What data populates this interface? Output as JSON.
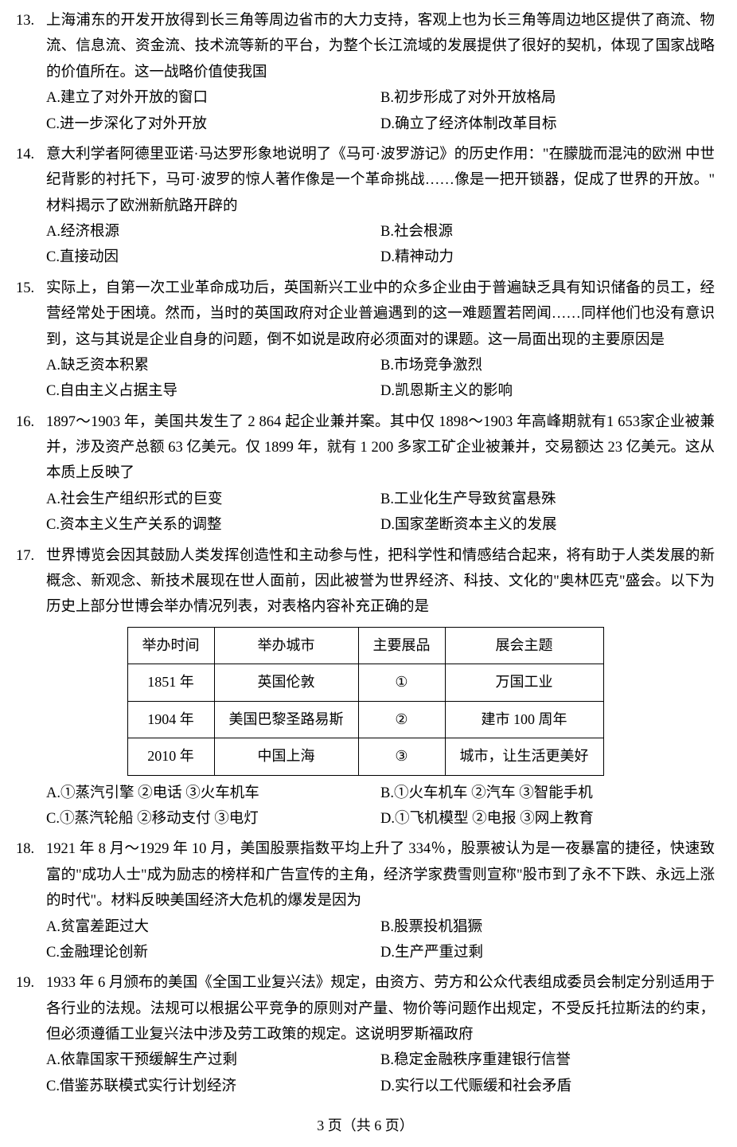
{
  "questions": [
    {
      "num": "13.",
      "stem": "上海浦东的开发开放得到长三角等周边省市的大力支持，客观上也为长三角等周边地区提供了商流、物流、信息流、资金流、技术流等新的平台，为整个长江流域的发展提供了很好的契机，体现了国家战略的价值所在。这一战略价值使我国",
      "opts": [
        {
          "l": "A.",
          "t": "建立了对外开放的窗口",
          "w": "half"
        },
        {
          "l": "B.",
          "t": "初步形成了对外开放格局",
          "w": "half"
        },
        {
          "l": "C.",
          "t": "进一步深化了对外开放",
          "w": "half"
        },
        {
          "l": "D.",
          "t": "确立了经济体制改革目标",
          "w": "half"
        }
      ]
    },
    {
      "num": "14.",
      "stem": "意大利学者阿德里亚诺·马达罗形象地说明了《马可·波罗游记》的历史作用：\"在朦胧而混沌的欧洲 中世纪背影的衬托下，马可·波罗的惊人著作像是一个革命挑战……像是一把开锁器，促成了世界的开放。\" 材料揭示了欧洲新航路开辟的",
      "opts": [
        {
          "l": "A.",
          "t": "经济根源",
          "w": "half"
        },
        {
          "l": "B.",
          "t": "社会根源",
          "w": "half"
        },
        {
          "l": "C.",
          "t": "直接动因",
          "w": "half"
        },
        {
          "l": "D.",
          "t": "精神动力",
          "w": "half"
        }
      ]
    },
    {
      "num": "15.",
      "stem": "实际上，自第一次工业革命成功后，英国新兴工业中的众多企业由于普遍缺乏具有知识储备的员工，经营经常处于困境。然而，当时的英国政府对企业普遍遇到的这一难题置若罔闻……同样他们也没有意识到，这与其说是企业自身的问题，倒不如说是政府必须面对的课题。这一局面出现的主要原因是",
      "opts": [
        {
          "l": "A.",
          "t": "缺乏资本积累",
          "w": "half"
        },
        {
          "l": "B.",
          "t": "市场竞争激烈",
          "w": "half"
        },
        {
          "l": "C.",
          "t": "自由主义占据主导",
          "w": "half"
        },
        {
          "l": "D.",
          "t": "凯恩斯主义的影响",
          "w": "half"
        }
      ]
    },
    {
      "num": "16.",
      "stem": "1897～1903 年，美国共发生了 2 864 起企业兼并案。其中仅 1898～1903 年高峰期就有1 653家企业被兼并，涉及资产总额 63 亿美元。仅 1899 年，就有 1 200 多家工矿企业被兼并，交易额达 23 亿美元。这从本质上反映了",
      "opts": [
        {
          "l": "A.",
          "t": "社会生产组织形式的巨变",
          "w": "half"
        },
        {
          "l": "B.",
          "t": "工业化生产导致贫富悬殊",
          "w": "half"
        },
        {
          "l": "C.",
          "t": "资本主义生产关系的调整",
          "w": "half"
        },
        {
          "l": "D.",
          "t": "国家垄断资本主义的发展",
          "w": "half"
        }
      ]
    },
    {
      "num": "17.",
      "stem": "世界博览会因其鼓励人类发挥创造性和主动参与性，把科学性和情感结合起来，将有助于人类发展的新概念、新观念、新技术展现在世人面前，因此被誉为世界经济、科技、文化的\"奥林匹克\"盛会。以下为历史上部分世博会举办情况列表，对表格内容补充正确的是",
      "table": {
        "headers": [
          "举办时间",
          "举办城市",
          "主要展品",
          "展会主题"
        ],
        "rows": [
          [
            "1851 年",
            "英国伦敦",
            "①",
            "万国工业"
          ],
          [
            "1904 年",
            "美国巴黎圣路易斯",
            "②",
            "建市 100 周年"
          ],
          [
            "2010 年",
            "中国上海",
            "③",
            "城市，让生活更美好"
          ]
        ]
      },
      "opts": [
        {
          "l": "A.",
          "t": "①蒸汽引擎 ②电话 ③火车机车",
          "w": "half"
        },
        {
          "l": "B.",
          "t": "①火车机车 ②汽车 ③智能手机",
          "w": "half"
        },
        {
          "l": "C.",
          "t": "①蒸汽轮船 ②移动支付 ③电灯",
          "w": "half"
        },
        {
          "l": "D.",
          "t": "①飞机模型 ②电报 ③网上教育",
          "w": "half"
        }
      ]
    },
    {
      "num": "18.",
      "stem": "1921 年 8 月～1929 年 10 月，美国股票指数平均上升了 334％，股票被认为是一夜暴富的捷径，快速致富的\"成功人士\"成为励志的榜样和广告宣传的主角，经济学家费雪则宣称\"股市到了永不下跌、永远上涨的时代\"。材料反映美国经济大危机的爆发是因为",
      "opts": [
        {
          "l": "A.",
          "t": "贫富差距过大",
          "w": "half"
        },
        {
          "l": "B.",
          "t": "股票投机猖獗",
          "w": "half"
        },
        {
          "l": "C.",
          "t": "金融理论创新",
          "w": "half"
        },
        {
          "l": "D.",
          "t": "生产严重过剩",
          "w": "half"
        }
      ]
    },
    {
      "num": "19.",
      "stem": "1933 年 6 月颁布的美国《全国工业复兴法》规定，由资方、劳方和公众代表组成委员会制定分别适用于各行业的法规。法规可以根据公平竞争的原则对产量、物价等问题作出规定，不受反托拉斯法的约束，但必须遵循工业复兴法中涉及劳工政策的规定。这说明罗斯福政府",
      "opts": [
        {
          "l": "A.",
          "t": "依靠国家干预缓解生产过剩",
          "w": "half"
        },
        {
          "l": "B.",
          "t": "稳定金融秩序重建银行信誉",
          "w": "half"
        },
        {
          "l": "C.",
          "t": "借鉴苏联模式实行计划经济",
          "w": "half"
        },
        {
          "l": "D.",
          "t": "实行以工代赈缓和社会矛盾",
          "w": "half"
        }
      ]
    }
  ],
  "footer": "3 页（共 6 页）"
}
